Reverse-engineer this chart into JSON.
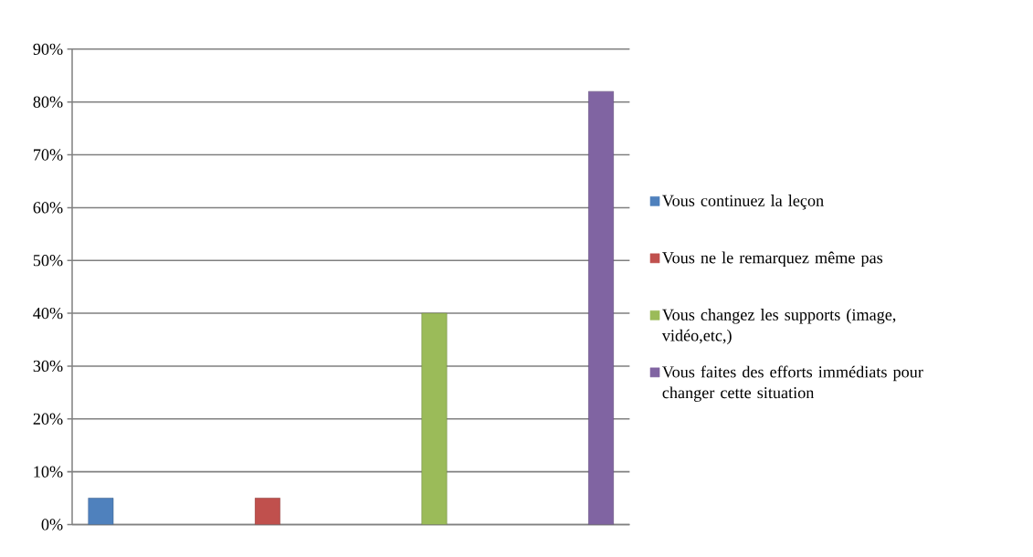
{
  "chart_data": {
    "type": "bar",
    "categories": [
      null,
      null,
      null,
      null
    ],
    "series": [
      {
        "name": "Vous continuez la leçon",
        "color": "#4f81bd",
        "values": [
          5,
          null,
          null,
          null
        ]
      },
      {
        "name": "Vous ne le remarquez même pas",
        "color": "#c0504d",
        "values": [
          null,
          5,
          null,
          null
        ]
      },
      {
        "name": "Vous changez les supports (image, vidéo,etc,)",
        "color": "#9bbb59",
        "values": [
          null,
          null,
          40,
          null
        ]
      },
      {
        "name": "Vous faites des efforts immédiats pour changer cette situation",
        "color": "#8064a2",
        "values": [
          null,
          null,
          null,
          82
        ]
      }
    ],
    "ylim": [
      0,
      90
    ],
    "yticks": [
      {
        "value": 0,
        "label": "0%"
      },
      {
        "value": 10,
        "label": "10%"
      },
      {
        "value": 20,
        "label": "20%"
      },
      {
        "value": 30,
        "label": "30%"
      },
      {
        "value": 40,
        "label": "40%"
      },
      {
        "value": 50,
        "label": "50%"
      },
      {
        "value": 60,
        "label": "60%"
      },
      {
        "value": 70,
        "label": "70%"
      },
      {
        "value": 80,
        "label": "80%"
      },
      {
        "value": 90,
        "label": "90%"
      }
    ],
    "grid": "y",
    "legend": "right"
  }
}
